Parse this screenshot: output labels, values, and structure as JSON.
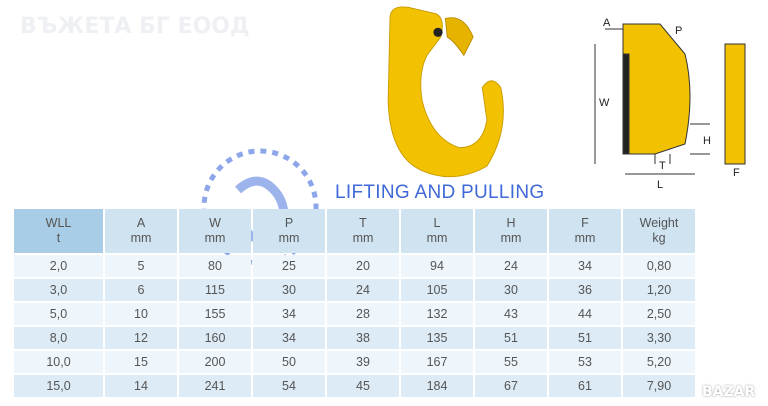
{
  "brand": "ВЪЖЕТА БГ ЕООД",
  "watermark": "LIFTING AND PULLING",
  "bazar": "BAZAR",
  "drawing_labels": {
    "A": "A",
    "P": "P",
    "W": "W",
    "H": "H",
    "T": "T",
    "L": "L",
    "F": "F"
  },
  "table": {
    "headers": [
      [
        "WLL",
        "t"
      ],
      [
        "A",
        "mm"
      ],
      [
        "W",
        "mm"
      ],
      [
        "P",
        "mm"
      ],
      [
        "T",
        "mm"
      ],
      [
        "L",
        "mm"
      ],
      [
        "H",
        "mm"
      ],
      [
        "F",
        "mm"
      ],
      [
        "Weight",
        "kg"
      ]
    ],
    "rows": [
      [
        "2,0",
        "5",
        "80",
        "25",
        "20",
        "94",
        "24",
        "34",
        "0,80"
      ],
      [
        "3,0",
        "6",
        "115",
        "30",
        "24",
        "105",
        "30",
        "36",
        "1,20"
      ],
      [
        "5,0",
        "10",
        "155",
        "34",
        "28",
        "132",
        "43",
        "44",
        "2,50"
      ],
      [
        "8,0",
        "12",
        "160",
        "34",
        "38",
        "135",
        "51",
        "51",
        "3,30"
      ],
      [
        "10,0",
        "15",
        "200",
        "50",
        "39",
        "167",
        "55",
        "53",
        "5,20"
      ],
      [
        "15,0",
        "14",
        "241",
        "54",
        "45",
        "184",
        "67",
        "61",
        "7,90"
      ]
    ]
  },
  "colors": {
    "hook": "#f2c200",
    "header": "#cfe3f1",
    "watermark": "#3f68d8"
  }
}
